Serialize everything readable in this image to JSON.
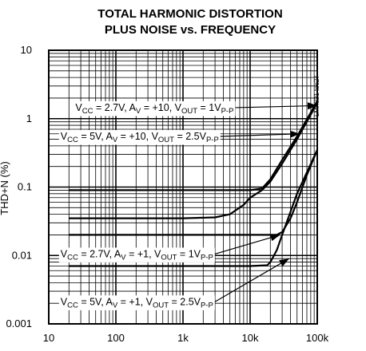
{
  "chart_data": {
    "type": "line",
    "title_line1": "TOTAL HARMONIC DISTORTION",
    "title_line2": "PLUS NOISE vs. FREQUENCY",
    "xlabel": "",
    "ylabel": "THD+N (%)",
    "x_scale": "log",
    "y_scale": "log",
    "xlim": [
      10,
      100000
    ],
    "ylim": [
      0.001,
      10
    ],
    "x_ticks": [
      {
        "value": 10,
        "label": "10"
      },
      {
        "value": 100,
        "label": "100"
      },
      {
        "value": 1000,
        "label": "1k"
      },
      {
        "value": 10000,
        "label": "10k"
      },
      {
        "value": 100000,
        "label": "100k"
      }
    ],
    "y_ticks": [
      {
        "value": 10,
        "label": "10"
      },
      {
        "value": 1,
        "label": "1"
      },
      {
        "value": 0.1,
        "label": "0.1"
      },
      {
        "value": 0.01,
        "label": "0.01"
      },
      {
        "value": 0.001,
        "label": "0.001"
      }
    ],
    "grid": true,
    "part_code": "LMX321 toc27",
    "series": [
      {
        "name": "VCC = 2.7V, AV = +10, VOUT = 1VP-P",
        "color": "#000000",
        "x": [
          20,
          100,
          1000,
          5000,
          10000,
          15000,
          20000,
          30000,
          50000,
          100000
        ],
        "y": [
          0.09,
          0.09,
          0.09,
          0.09,
          0.09,
          0.095,
          0.13,
          0.25,
          0.55,
          1.8
        ]
      },
      {
        "name": "VCC = 5V, AV = +10, VOUT = 2.5VP-P",
        "color": "#000000",
        "x": [
          20,
          100,
          1000,
          3000,
          5000,
          8000,
          10000,
          15000,
          20000,
          30000,
          50000,
          100000
        ],
        "y": [
          0.035,
          0.035,
          0.035,
          0.036,
          0.04,
          0.055,
          0.07,
          0.09,
          0.12,
          0.22,
          0.5,
          1.7
        ]
      },
      {
        "name": "VCC = 2.7V, AV = +1, VOUT = 1VP-P",
        "color": "#000000",
        "x": [
          20,
          100,
          1000,
          10000,
          25000,
          30000,
          40000,
          50000,
          70000,
          100000
        ],
        "y": [
          0.02,
          0.02,
          0.02,
          0.02,
          0.02,
          0.022,
          0.035,
          0.06,
          0.15,
          0.35
        ]
      },
      {
        "name": "VCC = 5V, AV = +1, VOUT = 2.5VP-P",
        "color": "#000000",
        "x": [
          20,
          100,
          1000,
          10000,
          18000,
          20000,
          25000,
          30000,
          50000,
          100000
        ],
        "y": [
          0.007,
          0.007,
          0.007,
          0.007,
          0.0072,
          0.008,
          0.012,
          0.02,
          0.08,
          0.35
        ]
      }
    ],
    "annotations": [
      {
        "main": [
          "V",
          "CC",
          " = 2.7V, A",
          "V",
          " = +10, V",
          "OUT",
          " = 1V",
          "P-P"
        ],
        "y": 1.45,
        "x_left": 25,
        "target": [
          100000,
          1.55
        ]
      },
      {
        "main": [
          "V",
          "CC",
          " = 5V, A",
          "V",
          " = +10, V",
          "OUT",
          " = 2.5V",
          "P-P"
        ],
        "y": 0.55,
        "x_left": 15,
        "target": [
          55000,
          0.6
        ]
      },
      {
        "main": [
          "V",
          "CC",
          " = 2.7V, A",
          "V",
          " = +1, V",
          "OUT",
          " = 1V",
          "P-P"
        ],
        "y": 0.0105,
        "x_left": 15,
        "target": [
          28000,
          0.02
        ]
      },
      {
        "main": [
          "V",
          "CC",
          " = 5V, A",
          "V",
          " = +1, V",
          "OUT",
          " = 2.5V",
          "P-P"
        ],
        "y": 0.0021,
        "x_left": 15,
        "target": [
          38000,
          0.009
        ]
      }
    ]
  }
}
